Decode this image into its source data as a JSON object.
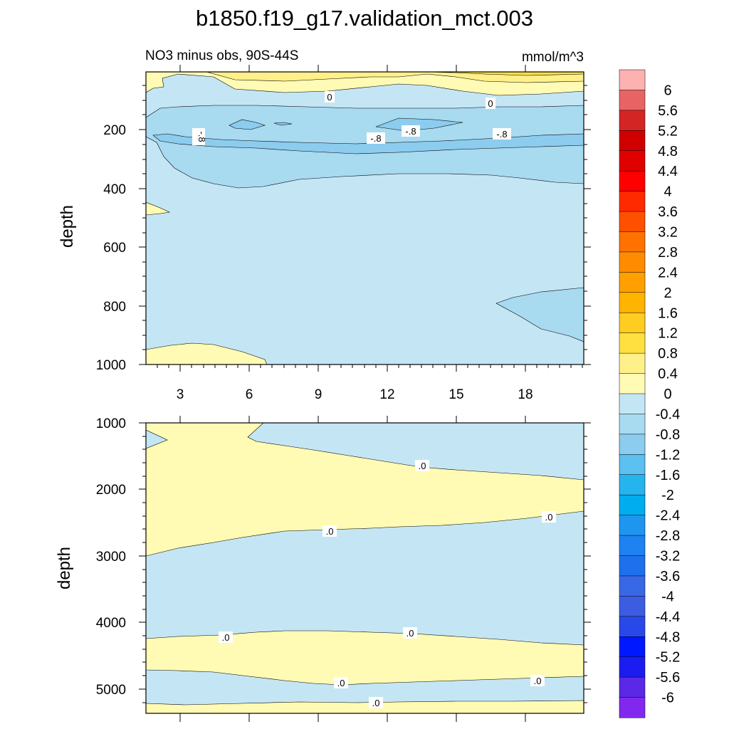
{
  "chart_data": {
    "type": "contour",
    "title": "b1850.f19_g17.validation_mct.003",
    "units": "mmol/m^3",
    "colorbar": {
      "labels": [
        "6",
        "5.6",
        "5.2",
        "4.8",
        "4.4",
        "4",
        "3.6",
        "3.2",
        "2.8",
        "2.4",
        "2",
        "1.6",
        "1.2",
        "0.8",
        "0.4",
        "0",
        "-0.4",
        "-0.8",
        "-1.2",
        "-1.6",
        "-2",
        "-2.4",
        "-2.8",
        "-3.2",
        "-3.6",
        "-4",
        "-4.4",
        "-4.8",
        "-5.2",
        "-5.6",
        "-6"
      ],
      "colors": [
        "#fdb1b1",
        "#e86464",
        "#d42525",
        "#d00000",
        "#e00000",
        "#ff0000",
        "#ff2a00",
        "#ff5000",
        "#ff7200",
        "#ff8c00",
        "#ffa000",
        "#ffb400",
        "#ffcc22",
        "#ffe040",
        "#fff08a",
        "#fffab4",
        "#c4e6f4",
        "#a8daf0",
        "#8cccee",
        "#5cc0f0",
        "#26b4ee",
        "#00aeef",
        "#1e96f0",
        "#1e82f0",
        "#1e70ec",
        "#3868e6",
        "#3c5ce2",
        "#2848e8",
        "#0018ff",
        "#1c1cf0",
        "#5a28e6",
        "#8228ee"
      ]
    },
    "panels": [
      {
        "name": "upper",
        "subtitle": "NO3 minus obs, 90S-44S",
        "ylabel": "depth",
        "ylim": [
          0,
          1000
        ],
        "yticks": [
          "200",
          "400",
          "600",
          "800",
          "1000"
        ],
        "xlim": [
          1.2,
          20.9
        ],
        "xticks": [
          "3",
          "6",
          "9",
          "12",
          "15",
          "18"
        ],
        "contour_labels": [
          "0",
          "0",
          "-.8",
          "-.8",
          "-.8",
          "-.8"
        ]
      },
      {
        "name": "lower",
        "ylabel": "depth",
        "ylim": [
          1000,
          5375
        ],
        "yticks": [
          "1000",
          "2000",
          "3000",
          "4000",
          "5000"
        ],
        "contour_labels": [
          ".0",
          ".0",
          ".0",
          ".0",
          ".0",
          ".0",
          ".0",
          ".0"
        ]
      }
    ]
  }
}
